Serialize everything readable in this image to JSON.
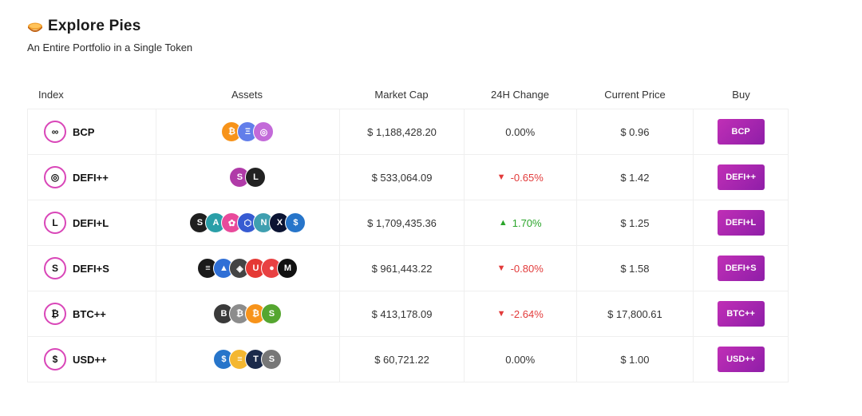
{
  "header": {
    "title": "Explore Pies",
    "subtitle": "An Entire Portfolio in a Single Token"
  },
  "table": {
    "columns": [
      "Index",
      "Assets",
      "Market Cap",
      "24H Change",
      "Current Price",
      "Buy"
    ],
    "rows": [
      {
        "name": "BCP",
        "symbol": "∞",
        "market_cap": "$ 1,188,428.20",
        "change": "0.00%",
        "change_dir": "flat",
        "price": "$ 0.96",
        "buy_label": "BCP",
        "assets": [
          {
            "glyph": "₿",
            "color": "#f7931a"
          },
          {
            "glyph": "Ξ",
            "color": "#627eea"
          },
          {
            "glyph": "◎",
            "color": "#c36ad9"
          }
        ]
      },
      {
        "name": "DEFI++",
        "symbol": "◎",
        "market_cap": "$ 533,064.09",
        "change": "-0.65%",
        "change_dir": "down",
        "price": "$ 1.42",
        "buy_label": "DEFI++",
        "assets": [
          {
            "glyph": "S",
            "color": "#b03aa8"
          },
          {
            "glyph": "L",
            "color": "#222222"
          }
        ]
      },
      {
        "name": "DEFI+L",
        "symbol": "L",
        "market_cap": "$ 1,709,435.36",
        "change": "1.70%",
        "change_dir": "up",
        "price": "$ 1.25",
        "buy_label": "DEFI+L",
        "assets": [
          {
            "glyph": "S",
            "color": "#1f1f1f"
          },
          {
            "glyph": "A",
            "color": "#2a9fa8"
          },
          {
            "glyph": "✿",
            "color": "#e84a9b"
          },
          {
            "glyph": "⬡",
            "color": "#375bd2"
          },
          {
            "glyph": "N",
            "color": "#3f9fb0"
          },
          {
            "glyph": "X",
            "color": "#0b1433"
          },
          {
            "glyph": "$",
            "color": "#2775ca"
          }
        ]
      },
      {
        "name": "DEFI+S",
        "symbol": "S",
        "market_cap": "$ 961,443.22",
        "change": "-0.80%",
        "change_dir": "down",
        "price": "$ 1.58",
        "buy_label": "DEFI+S",
        "assets": [
          {
            "glyph": "≡",
            "color": "#1a1a1a"
          },
          {
            "glyph": "▲",
            "color": "#2f6fd6"
          },
          {
            "glyph": "◈",
            "color": "#444444"
          },
          {
            "glyph": "U",
            "color": "#e53935"
          },
          {
            "glyph": "●",
            "color": "#e84142"
          },
          {
            "glyph": "M",
            "color": "#111111"
          }
        ]
      },
      {
        "name": "BTC++",
        "symbol": "₿",
        "market_cap": "$ 413,178.09",
        "change": "-2.64%",
        "change_dir": "down",
        "price": "$ 17,800.61",
        "buy_label": "BTC++",
        "assets": [
          {
            "glyph": "B",
            "color": "#3a3a3a"
          },
          {
            "glyph": "₿",
            "color": "#8c8c8c"
          },
          {
            "glyph": "₿",
            "color": "#f7931a"
          },
          {
            "glyph": "S",
            "color": "#55a630"
          }
        ]
      },
      {
        "name": "USD++",
        "symbol": "$",
        "market_cap": "$ 60,721.22",
        "change": "0.00%",
        "change_dir": "flat",
        "price": "$ 1.00",
        "buy_label": "USD++",
        "assets": [
          {
            "glyph": "$",
            "color": "#2775ca"
          },
          {
            "glyph": "≡",
            "color": "#f4b731"
          },
          {
            "glyph": "T",
            "color": "#1b2a4a"
          },
          {
            "glyph": "S",
            "color": "#777777"
          }
        ]
      }
    ]
  },
  "colors": {
    "accent": "#b52ab3",
    "negative": "#e23b3b",
    "positive": "#2aa52a"
  }
}
